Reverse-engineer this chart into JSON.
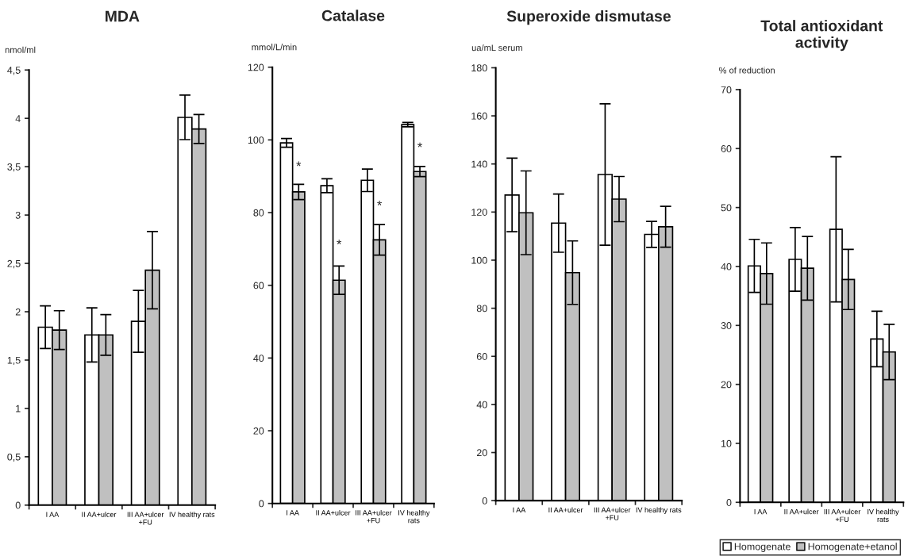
{
  "chart_data": [
    {
      "type": "bar",
      "title": "MDA",
      "ylabel": "nmol/ml",
      "categories": [
        "I AA",
        "II AA+ulcer",
        "III AA+ulcer\n+FU",
        "IV healthy rats"
      ],
      "series": [
        {
          "color": "#ffffff",
          "values": [
            1.84,
            1.76,
            1.9,
            4.01
          ],
          "errors": [
            0.22,
            0.28,
            0.32,
            0.23
          ]
        },
        {
          "color": "#c0c0c0",
          "values": [
            1.81,
            1.76,
            2.43,
            3.89
          ],
          "errors": [
            0.2,
            0.21,
            0.4,
            0.15
          ]
        }
      ],
      "ylim": [
        0,
        4.5
      ],
      "yticks": [
        0,
        {
          "value": 0.5,
          "label": "0,5"
        },
        1,
        {
          "value": 1.5,
          "label": "1,5"
        },
        2,
        {
          "value": 2.5,
          "label": "2,5"
        },
        3,
        {
          "value": 3.5,
          "label": "3,5"
        },
        4,
        {
          "value": 4.5,
          "label": "4,5"
        }
      ],
      "grid": false,
      "legend": false
    },
    {
      "type": "bar",
      "title": "Catalase",
      "ylabel": "mmol/L/min",
      "categories": [
        "I AA",
        "II AA+ulcer",
        "III AA+ulcer\n+FU",
        "IV healthy\nrats"
      ],
      "series": [
        {
          "color": "#ffffff",
          "values": [
            99.2,
            87.4,
            88.9,
            104.2
          ],
          "errors": [
            1.2,
            1.9,
            3.1,
            0.6
          ]
        },
        {
          "color": "#c0c0c0",
          "values": [
            85.7,
            61.4,
            72.5,
            91.3
          ],
          "errors": [
            2.1,
            3.9,
            4.2,
            1.4
          ]
        }
      ],
      "annotations": [
        {
          "text": "*",
          "x": "I AA",
          "y": 92.5
        },
        {
          "text": "*",
          "x": "II AA+ulcer",
          "y": 71
        },
        {
          "text": "*",
          "x": "III AA+ulcer\n+FU",
          "y": 81.7
        },
        {
          "text": "*",
          "x": "IV healthy\nrats",
          "y": 97.7
        }
      ],
      "ylim": [
        0,
        120
      ],
      "yticks": [
        0,
        20,
        40,
        60,
        80,
        100,
        120
      ],
      "grid": false,
      "legend": false
    },
    {
      "type": "bar",
      "title": "Superoxide dismutase",
      "ylabel": "ua/mL serum",
      "categories": [
        "I AA",
        "II AA+ulcer",
        "III AA+ulcer\n+FU",
        "IV healthy rats"
      ],
      "series": [
        {
          "color": "#ffffff",
          "values": [
            127.1,
            115.4,
            135.6,
            110.7
          ],
          "errors": [
            15.3,
            12.1,
            29.4,
            5.4
          ]
        },
        {
          "color": "#c0c0c0",
          "values": [
            119.7,
            94.8,
            125.4,
            113.9
          ],
          "errors": [
            17.4,
            13.2,
            9.4,
            8.5
          ]
        }
      ],
      "ylim": [
        0,
        180
      ],
      "yticks": [
        0,
        20,
        40,
        60,
        80,
        100,
        120,
        140,
        160,
        180
      ],
      "grid": false,
      "legend": false
    },
    {
      "type": "bar",
      "title": "Total antioxidant\nactivity",
      "ylabel": "% of reduction",
      "categories": [
        "I AA",
        "II AA+ulcer",
        "III AA+ulcer\n+FU",
        "IV healthy\nrats"
      ],
      "series": [
        {
          "name": "Homogenate",
          "color": "#ffffff",
          "values": [
            40.1,
            41.2,
            46.3,
            27.7
          ],
          "errors": [
            4.5,
            5.4,
            12.3,
            4.7
          ]
        },
        {
          "name": "Homogenate+etanol",
          "color": "#c0c0c0",
          "values": [
            38.8,
            39.7,
            37.8,
            25.5
          ],
          "errors": [
            5.2,
            5.4,
            5.1,
            4.7
          ]
        }
      ],
      "ylim": [
        0,
        70
      ],
      "yticks": [
        0,
        10,
        20,
        30,
        40,
        50,
        60,
        70
      ],
      "grid": false,
      "legend": "bottom"
    }
  ]
}
